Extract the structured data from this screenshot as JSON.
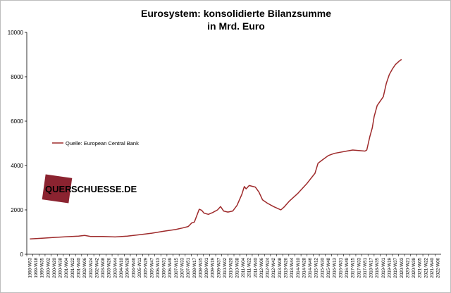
{
  "chart_data": {
    "type": "line",
    "title_lines": [
      "Eurosystem: konsolidierte Bilanzsumme",
      "in Mrd. Euro"
    ],
    "xlabel": "",
    "ylabel": "",
    "ylim": [
      0,
      10000
    ],
    "yticks": [
      "0",
      "2000",
      "4000",
      "6000",
      "8000",
      "10000"
    ],
    "grid": false,
    "legend": {
      "position": "left-middle",
      "entries": [
        "Quelle: European Central Bank"
      ]
    },
    "watermark": {
      "part1": "QUER",
      "part2": "SCHUESSE.DE",
      "color": "#8b2330"
    },
    "line_color": "#9e2a2b",
    "x_tick_labels": [
      "1998-W53",
      "1999-W18",
      "1999-W35",
      "2000-W02",
      "2000-W20",
      "2000-W38",
      "2001-W04",
      "2001-W22",
      "2001-W40",
      "2002-W06",
      "2002-W24",
      "2002-W42",
      "2003-W08",
      "2003-W26",
      "2003-W44",
      "2004-W10",
      "2004-W28",
      "2004-W46",
      "2005-W11",
      "2005-W29",
      "2005-W47",
      "2006-W13",
      "2006-W31",
      "2006-W49",
      "2007-W15",
      "2007-W33",
      "2007-W51",
      "2008-W17",
      "2008-W35",
      "2009-W01",
      "2009-W19",
      "2009-W37",
      "2010-W02",
      "2010-W20",
      "2010-W38",
      "2011-W04",
      "2011-W22",
      "2011-W40",
      "2012-W06",
      "2012-W24",
      "2012-W42",
      "2013-W08",
      "2013-W26",
      "2013-W44",
      "2014-W10",
      "2014-W28",
      "2014-W46",
      "2015-W12",
      "2015-W30",
      "2015-W48",
      "2016-W13",
      "2016-W31",
      "2016-W49",
      "2017-W15",
      "2017-W33",
      "2017-W51",
      "2018-W17",
      "2018-W35",
      "2019-W01",
      "2019-W19",
      "2019-W37",
      "2020-W03",
      "2020-W21",
      "2020-W39",
      "2021-W05",
      "2021-W22",
      "2021-W40",
      "2022-W06"
    ],
    "series": [
      {
        "name": "Quelle: European Central Bank",
        "points": [
          [
            0,
            690
          ],
          [
            2,
            720
          ],
          [
            4,
            760
          ],
          [
            6,
            790
          ],
          [
            8,
            820
          ],
          [
            9,
            850
          ],
          [
            10,
            800
          ],
          [
            12,
            800
          ],
          [
            14,
            780
          ],
          [
            16,
            820
          ],
          [
            18,
            880
          ],
          [
            20,
            950
          ],
          [
            22,
            1040
          ],
          [
            24,
            1120
          ],
          [
            25,
            1180
          ],
          [
            26,
            1250
          ],
          [
            26.6,
            1420
          ],
          [
            27,
            1450
          ],
          [
            27.8,
            2030
          ],
          [
            28.2,
            1980
          ],
          [
            28.6,
            1850
          ],
          [
            29.3,
            1800
          ],
          [
            30,
            1880
          ],
          [
            30.8,
            2000
          ],
          [
            31.3,
            2150
          ],
          [
            31.8,
            1950
          ],
          [
            32.5,
            1900
          ],
          [
            33.3,
            1950
          ],
          [
            34,
            2200
          ],
          [
            34.8,
            2700
          ],
          [
            35.2,
            3050
          ],
          [
            35.5,
            2950
          ],
          [
            36,
            3100
          ],
          [
            37,
            3030
          ],
          [
            37.6,
            2800
          ],
          [
            38.2,
            2450
          ],
          [
            39,
            2300
          ],
          [
            40,
            2150
          ],
          [
            40.8,
            2050
          ],
          [
            41.2,
            2000
          ],
          [
            41.8,
            2150
          ],
          [
            42.6,
            2400
          ],
          [
            44,
            2750
          ],
          [
            45.5,
            3200
          ],
          [
            46.8,
            3650
          ],
          [
            47.3,
            4100
          ],
          [
            48,
            4250
          ],
          [
            49,
            4450
          ],
          [
            50,
            4550
          ],
          [
            52,
            4650
          ],
          [
            53,
            4700
          ],
          [
            55,
            4650
          ],
          [
            55.3,
            4700
          ],
          [
            55.8,
            5300
          ],
          [
            56.2,
            5700
          ],
          [
            56.5,
            6200
          ],
          [
            57,
            6700
          ],
          [
            57.5,
            6900
          ],
          [
            58,
            7100
          ],
          [
            58.5,
            7700
          ],
          [
            59,
            8100
          ],
          [
            59.5,
            8350
          ],
          [
            60,
            8550
          ],
          [
            60.6,
            8700
          ],
          [
            61,
            8780
          ]
        ]
      }
    ]
  }
}
